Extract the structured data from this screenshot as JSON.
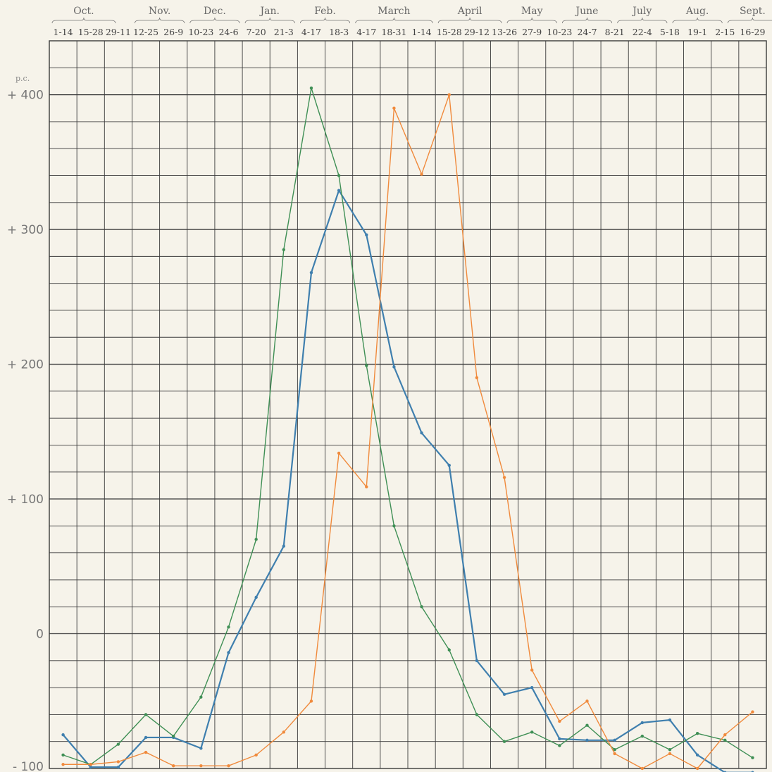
{
  "chart_data": {
    "type": "line",
    "ylabel": "p.c.",
    "ylim": [
      -100,
      440
    ],
    "yticks": [
      {
        "value": 400,
        "label": "+ 400"
      },
      {
        "value": 300,
        "label": "+ 300"
      },
      {
        "value": 200,
        "label": "+ 200"
      },
      {
        "value": 100,
        "label": "+ 100"
      },
      {
        "value": 0,
        "label": "0"
      },
      {
        "value": -100,
        "label": "- 100"
      }
    ],
    "grid": true,
    "months": [
      {
        "label": "Oct.",
        "start": 0,
        "span": 2.5
      },
      {
        "label": "Nov.",
        "start": 3,
        "span": 2
      },
      {
        "label": "Dec.",
        "start": 5,
        "span": 2
      },
      {
        "label": "Jan.",
        "start": 7,
        "span": 2
      },
      {
        "label": "Feb.",
        "start": 9,
        "span": 2
      },
      {
        "label": "March",
        "start": 11,
        "span": 3
      },
      {
        "label": "April",
        "start": 14,
        "span": 2.5
      },
      {
        "label": "May",
        "start": 16.5,
        "span": 2
      },
      {
        "label": "June",
        "start": 18.5,
        "span": 2
      },
      {
        "label": "July",
        "start": 20.5,
        "span": 2
      },
      {
        "label": "Aug.",
        "start": 22.5,
        "span": 2
      },
      {
        "label": "Sept.",
        "start": 24.5,
        "span": 2
      }
    ],
    "categories": [
      "1-14",
      "15-28",
      "29-11",
      "12-25",
      "26-9",
      "10-23",
      "24-6",
      "7-20",
      "21-3",
      "4-17",
      "18-3",
      "4-17",
      "18-31",
      "1-14",
      "15-28",
      "29-12",
      "13-26",
      "27-9",
      "10-23",
      "24-7",
      "8-21",
      "22-4",
      "5-18",
      "19-1",
      "2-15",
      "16-29"
    ],
    "series": [
      {
        "color": "#3f7fae",
        "values": [
          -75,
          -99,
          -99,
          -77,
          -77,
          -85,
          -14,
          27,
          65,
          268,
          329,
          296,
          198,
          149,
          125,
          -20,
          -45,
          -40,
          -78,
          -79,
          -79,
          -66,
          -64,
          -90,
          -103,
          -103
        ]
      },
      {
        "color": "#3f8f55",
        "values": [
          -90,
          -97,
          -82,
          -60,
          -76,
          -47,
          5,
          70,
          285,
          405,
          340,
          199,
          80,
          20,
          -12,
          -60,
          -80,
          -73,
          -83,
          -68,
          -86,
          -76,
          -86,
          -74,
          -79,
          -92
        ]
      },
      {
        "color": "#f08a3c",
        "values": [
          -97,
          -97,
          -95,
          -88,
          -98,
          -98,
          -98,
          -90,
          -73,
          -50,
          134,
          109,
          390,
          341,
          400,
          190,
          116,
          -27,
          -65,
          -50,
          -89,
          -100,
          -89,
          -100,
          -75,
          -58
        ]
      }
    ]
  }
}
